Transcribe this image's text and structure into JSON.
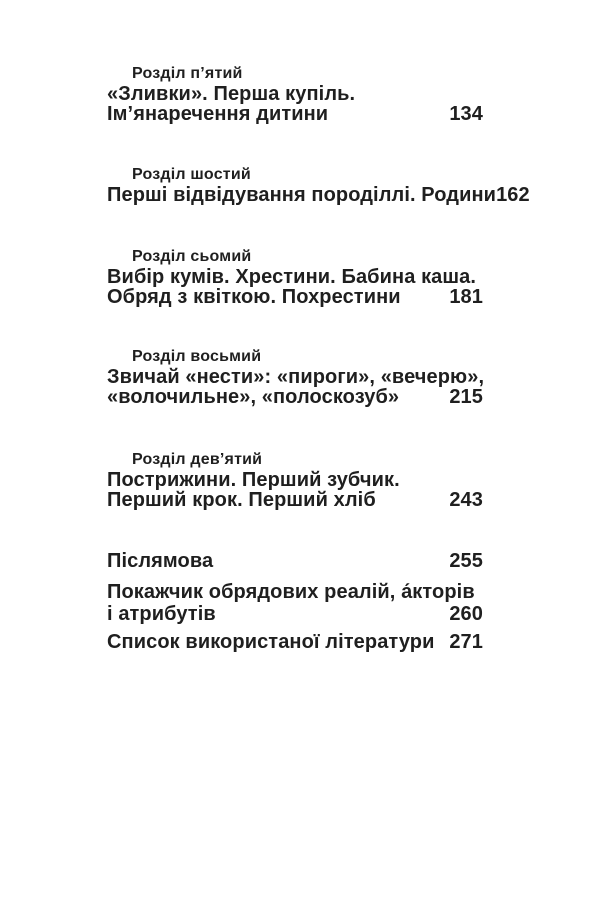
{
  "page": {
    "background": "#ffffff",
    "text_color": "#1f1f1f"
  },
  "toc": {
    "entries": [
      {
        "label": "Розділ п’ятий",
        "title_lines": [
          "«Зливки». Перша купіль.",
          "Ім’янаречення дитини"
        ],
        "page": "134"
      },
      {
        "label": "Розділ шостий",
        "title_lines": [
          "Перші відвідування породіллі. Родини"
        ],
        "page": "162"
      },
      {
        "label": "Розділ сьомий",
        "title_lines": [
          "Вибір кумів. Хрестини. Бабина каша.",
          "Обряд з квіткою. Похрестини"
        ],
        "page": "181"
      },
      {
        "label": "Розділ восьмий",
        "title_lines": [
          "Звичай «нести»: «пироги», «вечерю»,",
          "«волочильне», «полоскозуб»"
        ],
        "page": "215"
      },
      {
        "label": "Розділ дев’ятий",
        "title_lines": [
          "Пострижини. Перший зубчик.",
          "Перший крок. Перший хліб"
        ],
        "page": "243"
      }
    ],
    "back_matter": [
      {
        "title_lines": [
          "Післямова"
        ],
        "page": "255"
      },
      {
        "title_lines": [
          "Покажчик обрядових реалій, а́кторів",
          "і атрибутів"
        ],
        "page": "260"
      },
      {
        "title_lines": [
          "Список використаної літератури"
        ],
        "page": "271"
      }
    ]
  }
}
